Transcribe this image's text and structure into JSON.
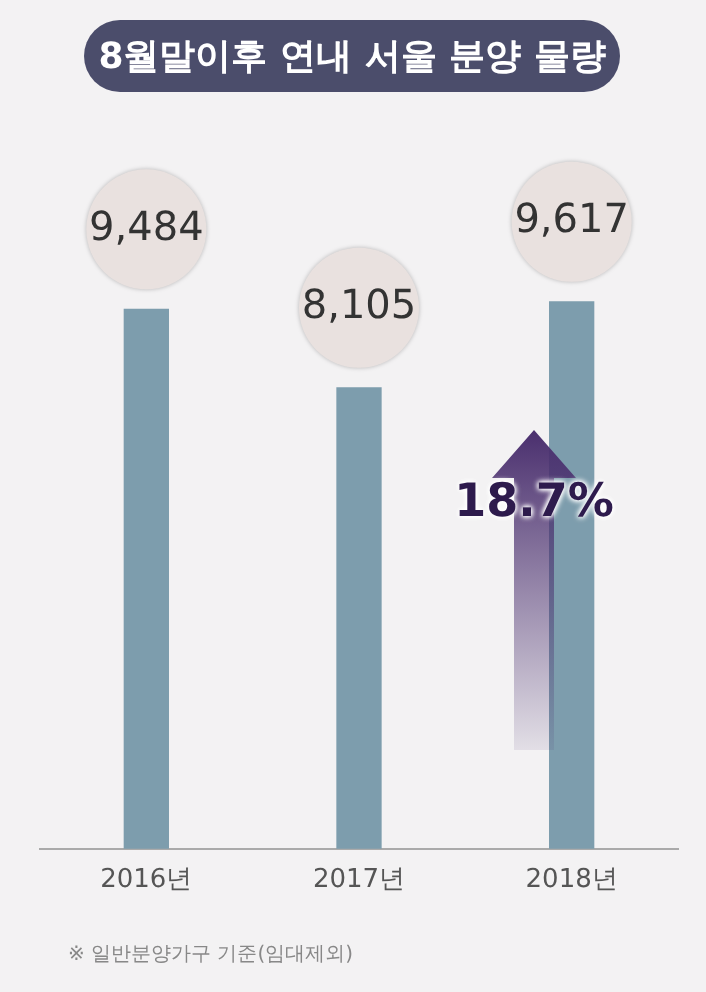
{
  "chart_data": {
    "type": "bar",
    "title": "8월말이후 연내 서울 분양 물량",
    "categories": [
      "2016년",
      "2017년",
      "2018년"
    ],
    "values": [
      9484,
      8105,
      9617
    ],
    "color": "#7d9dad",
    "value_labels": [
      "9,484",
      "8,105",
      "9,617"
    ],
    "tick_labels": "x",
    "grid": false,
    "legend": false,
    "annotations": [
      "18.7%",
      "※ 일반분양가구 기준(임대제외)"
    ]
  }
}
